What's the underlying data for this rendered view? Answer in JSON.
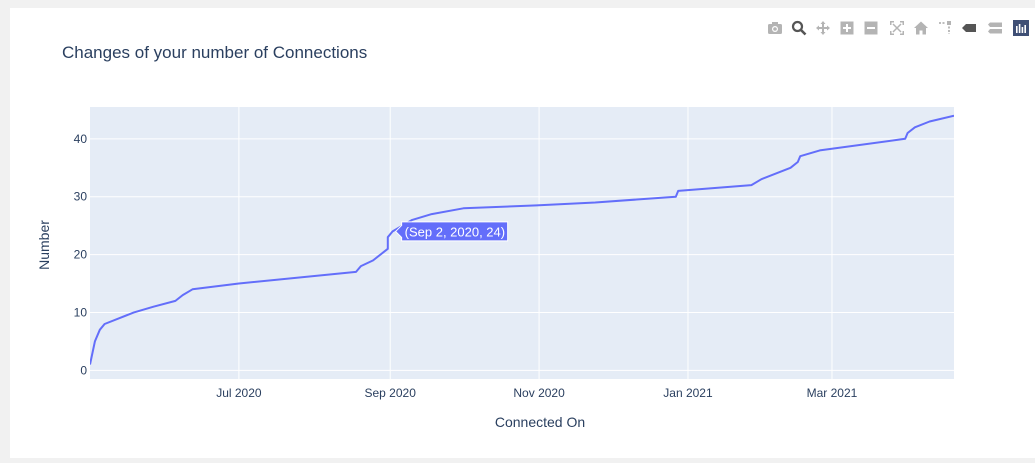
{
  "title": "Changes of your number of Connections",
  "modebar": {
    "buttons": [
      {
        "name": "download-plot-button",
        "icon": "camera-icon"
      },
      {
        "name": "zoom-button",
        "icon": "zoom-icon"
      },
      {
        "name": "pan-button",
        "icon": "pan-icon"
      },
      {
        "name": "zoom-in-button",
        "icon": "zoom-in-icon"
      },
      {
        "name": "zoom-out-button",
        "icon": "zoom-out-icon"
      },
      {
        "name": "autoscale-button",
        "icon": "autoscale-icon"
      },
      {
        "name": "reset-axes-button",
        "icon": "home-icon"
      },
      {
        "name": "spike-lines-button",
        "icon": "spikelines-icon"
      },
      {
        "name": "hover-closest-button",
        "icon": "hover-closest-icon"
      },
      {
        "name": "hover-compare-button",
        "icon": "hover-compare-icon"
      },
      {
        "name": "plotly-logo-button",
        "icon": "plotly-logo-icon"
      }
    ]
  },
  "colors": {
    "plot_bg": "#e5ecf6",
    "grid": "#ffffff",
    "line": "#636efa",
    "text": "#2a3f5f",
    "modebar_icon": "#b4b4b4",
    "modebar_active": "#7f7f7f"
  },
  "tooltip": {
    "text": "(Sep 2, 2020, 24)"
  },
  "chart_data": {
    "type": "line",
    "title": "Changes of your number of Connections",
    "xlabel": "Connected On",
    "ylabel": "Number",
    "x_type": "date",
    "xlim": [
      "2020-05-01",
      "2021-04-20"
    ],
    "ylim": [
      -1.5,
      45.5
    ],
    "grid": true,
    "x_ticks": [
      {
        "date": "2020-07-01",
        "label": "Jul 2020"
      },
      {
        "date": "2020-09-01",
        "label": "Sep 2020"
      },
      {
        "date": "2020-11-01",
        "label": "Nov 2020"
      },
      {
        "date": "2021-01-01",
        "label": "Jan 2021"
      },
      {
        "date": "2021-03-01",
        "label": "Mar 2021"
      }
    ],
    "y_ticks": [
      0,
      10,
      20,
      30,
      40
    ],
    "hover_point": {
      "x": "2020-09-02",
      "y": 24
    },
    "series": [
      {
        "x": [
          "2020-05-01",
          "2020-05-03",
          "2020-05-05",
          "2020-05-07",
          "2020-05-13",
          "2020-05-19",
          "2020-05-27",
          "2020-06-05",
          "2020-06-08",
          "2020-06-12",
          "2020-07-01",
          "2020-08-18",
          "2020-08-20",
          "2020-08-25",
          "2020-08-28",
          "2020-08-31",
          "2020-08-31",
          "2020-09-02",
          "2020-09-10",
          "2020-09-18",
          "2020-10-01",
          "2020-10-31",
          "2020-11-24",
          "2020-12-27",
          "2020-12-28",
          "2021-01-27",
          "2021-01-31",
          "2021-02-12",
          "2021-02-15",
          "2021-02-16",
          "2021-02-24",
          "2021-03-31",
          "2021-04-01",
          "2021-04-04",
          "2021-04-10",
          "2021-04-20"
        ],
        "y": [
          1,
          5,
          7,
          8,
          9,
          10,
          11,
          12,
          13,
          14,
          15,
          17,
          18,
          19,
          20,
          21,
          23,
          24,
          26,
          27,
          28,
          28.5,
          29,
          30,
          31,
          32,
          33,
          35,
          36,
          37,
          38,
          40,
          41,
          42,
          43,
          44
        ]
      }
    ]
  }
}
